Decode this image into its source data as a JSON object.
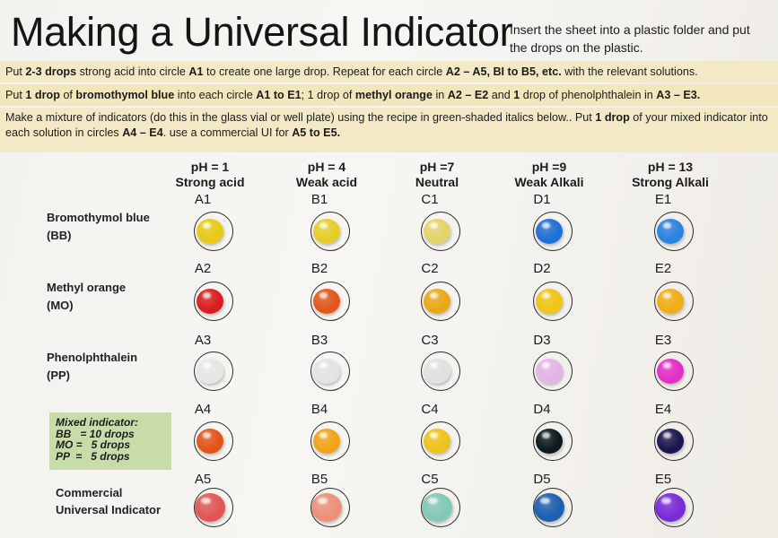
{
  "title": "Making a Universal Indicator",
  "note": "Insert the sheet into a plastic folder and put the drops on the plastic.",
  "instructions": [
    {
      "parts": [
        {
          "t": "Put ",
          "b": false
        },
        {
          "t": "2-3 drops",
          "b": true
        },
        {
          "t": " strong acid into circle ",
          "b": false
        },
        {
          "t": "A1",
          "b": true
        },
        {
          "t": " to create one large drop. Repeat for each circle ",
          "b": false
        },
        {
          "t": "A2 – A5, BI to B5, etc.",
          "b": true
        },
        {
          "t": "  with the relevant solutions.",
          "b": false
        }
      ]
    },
    {
      "parts": [
        {
          "t": "Put ",
          "b": false
        },
        {
          "t": "1 drop",
          "b": true
        },
        {
          "t": " of ",
          "b": false
        },
        {
          "t": "bromothymol blue",
          "b": true
        },
        {
          "t": " into each circle ",
          "b": false
        },
        {
          "t": "A1 to E1",
          "b": true
        },
        {
          "t": "; 1 drop of ",
          "b": false
        },
        {
          "t": "methyl orange",
          "b": true
        },
        {
          "t": " in ",
          "b": false
        },
        {
          "t": "A2 – E2",
          "b": true
        },
        {
          "t": " and ",
          "b": false
        },
        {
          "t": "1",
          "b": true
        },
        {
          "t": " drop of phenolphthalein in ",
          "b": false
        },
        {
          "t": "A3 – E3.",
          "b": true
        }
      ]
    },
    {
      "parts": [
        {
          "t": "Make a mixture of indicators (do this in the glass vial or well plate) using the recipe in green-shaded italics below.. Put ",
          "b": false
        },
        {
          "t": "1 drop",
          "b": true
        },
        {
          "t": " of your mixed indicator into each solution in circles ",
          "b": false
        },
        {
          "t": "A4 – E4",
          "b": true
        },
        {
          "t": ". use a commercial UI for ",
          "b": false
        },
        {
          "t": "A5 to E5.",
          "b": true
        }
      ]
    }
  ],
  "columns": [
    {
      "ph": "pH = 1",
      "name": "Strong acid"
    },
    {
      "ph": "pH = 4",
      "name": "Weak acid"
    },
    {
      "ph": "pH =7",
      "name": "Neutral"
    },
    {
      "ph": "pH =9",
      "name": "Weak Alkali"
    },
    {
      "ph": "pH = 13",
      "name": "Strong Alkali"
    }
  ],
  "rows": [
    {
      "label1": "Bromothymol blue",
      "label2": "(BB)"
    },
    {
      "label1": "Methyl orange",
      "label2": "(MO)"
    },
    {
      "label1": "Phenolphthalein",
      "label2": "(PP)"
    },
    {
      "label1": "",
      "label2": ""
    },
    {
      "label1": "Commercial",
      "label2": "Universal Indicator"
    }
  ],
  "mixed_indicator": {
    "heading": "Mixed indicator:",
    "lines": [
      "BB   = 10 drops",
      "MO =   5 drops",
      "PP  =   5 drops"
    ]
  },
  "cells": [
    [
      "A1",
      "B1",
      "C1",
      "D1",
      "E1"
    ],
    [
      "A2",
      "B2",
      "C2",
      "D2",
      "E2"
    ],
    [
      "A3",
      "B3",
      "C3",
      "D3",
      "E3"
    ],
    [
      "A4",
      "B4",
      "C4",
      "D4",
      "E4"
    ],
    [
      "A5",
      "B5",
      "C5",
      "D5",
      "E5"
    ]
  ],
  "drop_colors": [
    [
      "#e8c917",
      "#e6cd2a",
      "#e4d36a",
      "#1e6fd6",
      "#2b82e0"
    ],
    [
      "#d81e1e",
      "#e2571a",
      "#e9a816",
      "#f0c513",
      "#f0ae14"
    ],
    [
      "#e6e6e6",
      "#e3e3e3",
      "#e0e0e0",
      "#e3b5e5",
      "#e22fc8"
    ],
    [
      "#e2541a",
      "#f0a319",
      "#ecc31a",
      "#0b1a1e",
      "#1a1650"
    ],
    [
      "#e05656",
      "#ec9178",
      "#82c8b6",
      "#1d5fb0",
      "#7a2bd8"
    ]
  ]
}
